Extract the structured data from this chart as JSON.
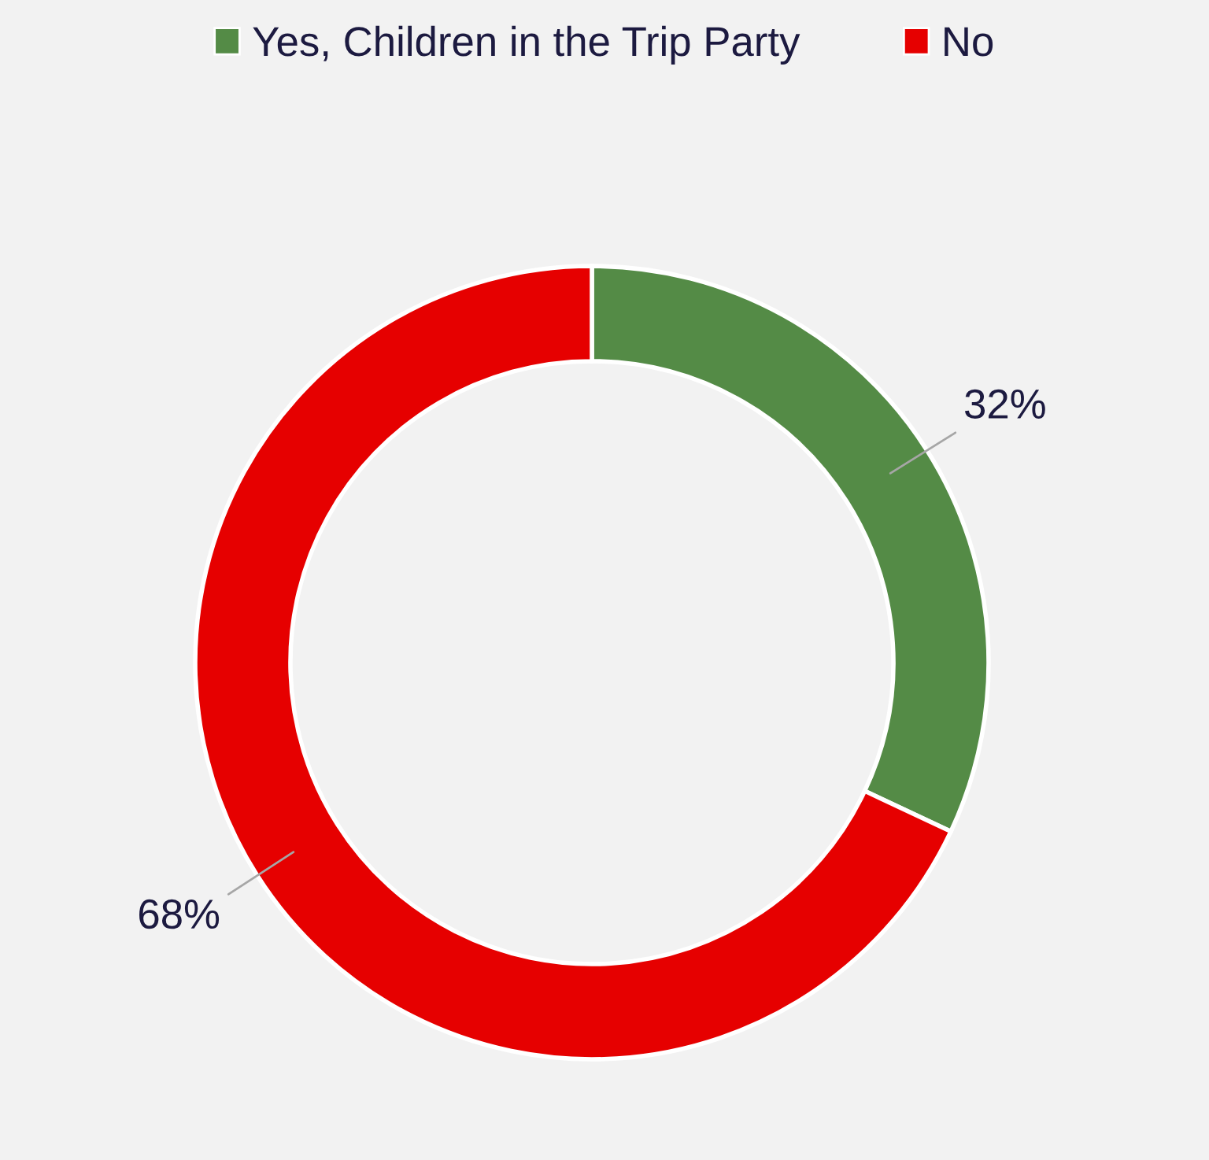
{
  "chart_data": {
    "type": "donut",
    "categories": [
      "Yes, Children in the Trip Party",
      "No"
    ],
    "values": [
      32,
      68
    ],
    "colors": [
      "#548b46",
      "#e60000"
    ],
    "value_labels": [
      "32%",
      "68%"
    ],
    "legend": "top"
  }
}
